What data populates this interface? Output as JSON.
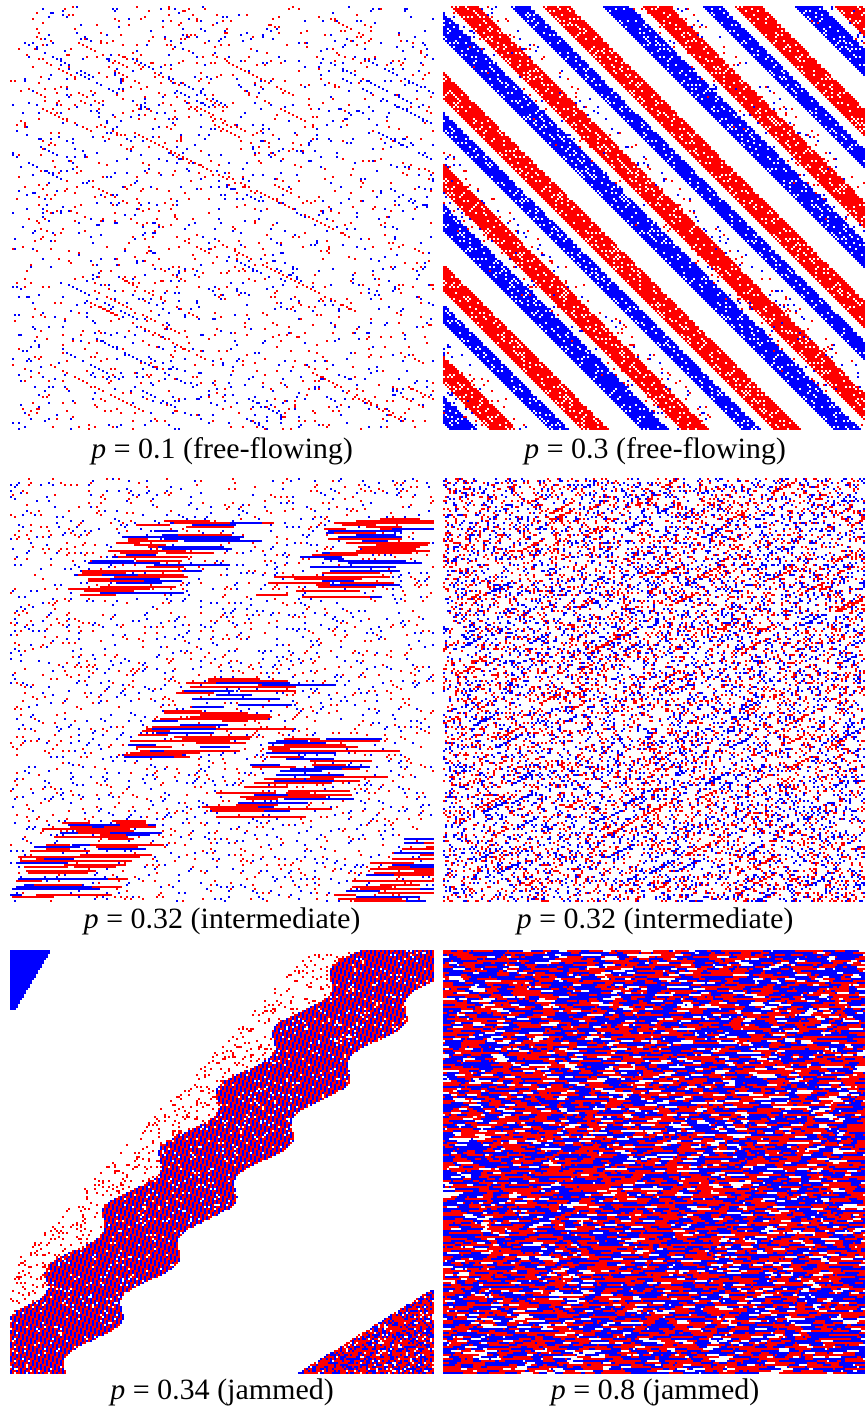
{
  "colors": {
    "red": "#ff0000",
    "blue": "#0000ff",
    "background": "#ffffff"
  },
  "panels": [
    {
      "id": "p1",
      "p": "0.1",
      "regime": "(free-flowing)",
      "style": "sparse"
    },
    {
      "id": "p2",
      "p": "0.3",
      "regime": "(free-flowing)",
      "style": "stripes"
    },
    {
      "id": "p3",
      "p": "0.32",
      "regime": "(intermediate)",
      "style": "intermediate-a"
    },
    {
      "id": "p4",
      "p": "0.32",
      "regime": "(intermediate)",
      "style": "intermediate-b"
    },
    {
      "id": "p5",
      "p": "0.34",
      "regime": "(jammed)",
      "style": "jam-band"
    },
    {
      "id": "p6",
      "p": "0.8",
      "regime": "(jammed)",
      "style": "dense"
    }
  ],
  "labels": {
    "p_symbol": "p",
    "equals": "=",
    "c1": {
      "p": "0.1",
      "regime": "(free-flowing)"
    },
    "c2": {
      "p": "0.3",
      "regime": "(free-flowing)"
    },
    "c3": {
      "p": "0.32",
      "regime": "(intermediate)"
    },
    "c4": {
      "p": "0.32",
      "regime": "(intermediate)"
    },
    "c5": {
      "p": "0.34",
      "regime": "(jammed)"
    },
    "c6": {
      "p": "0.8",
      "regime": "(jammed)"
    }
  }
}
